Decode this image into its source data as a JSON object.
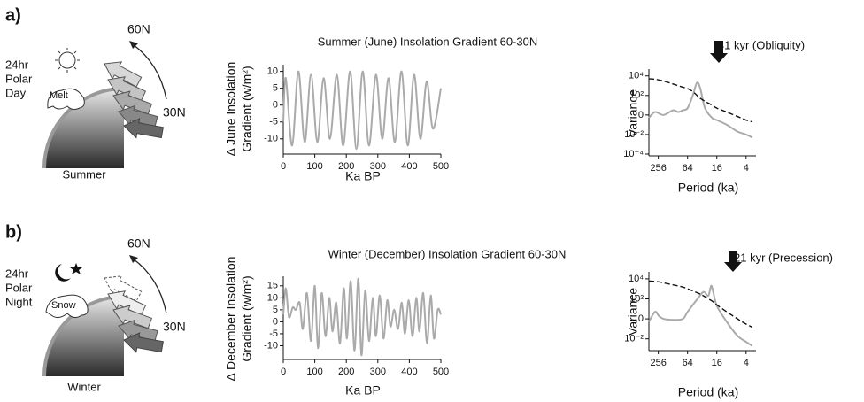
{
  "chart_data": [
    {
      "type": "line",
      "title": "Summer (June) Insolation Gradient 60-30N",
      "xlabel": "Ka BP",
      "ylabel": [
        "Δ June Insolation",
        "Gradient  (w/m²)"
      ],
      "xlim": [
        0,
        500
      ],
      "xticks": [
        0,
        100,
        200,
        300,
        400,
        500
      ],
      "ylim": [
        -14,
        12
      ],
      "yticks": [
        10,
        5,
        0,
        -5,
        -10
      ],
      "x": [
        0,
        8,
        28,
        48,
        68,
        88,
        108,
        128,
        148,
        170,
        190,
        212,
        232,
        252,
        272,
        294,
        314,
        334,
        354,
        375,
        395,
        415,
        435,
        455,
        475,
        500
      ],
      "series": [
        {
          "color": "#aaaaaa",
          "values": [
            -5,
            8,
            -12,
            10,
            -11,
            9,
            -11,
            8,
            -10,
            9,
            -12,
            10,
            -13,
            10,
            -12,
            9,
            -10,
            8,
            -11,
            10,
            -12,
            9,
            -10,
            7,
            -7,
            5
          ]
        }
      ]
    },
    {
      "type": "spectrum",
      "xlabel": "Period (ka)",
      "ylabel": [
        "Variance"
      ],
      "annotation": "41 kyr (Obliquity)",
      "xlog": true,
      "ylog": true,
      "xlim": [
        400,
        2.5
      ],
      "xticks": [
        256,
        64,
        16,
        4
      ],
      "ylim": [
        0.0001,
        50000
      ],
      "yticks": [
        {
          "value": 10000,
          "label": "10⁴"
        },
        {
          "value": 100,
          "label": "10²"
        },
        {
          "value": 1,
          "label": "0"
        },
        {
          "value": 0.01,
          "label": "10⁻²"
        },
        {
          "value": 0.0001,
          "label": "10⁻⁴"
        }
      ],
      "x": [
        400,
        300,
        200,
        128,
        100,
        80,
        64,
        50,
        41,
        35,
        28,
        20,
        16,
        10,
        6,
        4,
        3
      ],
      "series": [
        {
          "color": "#aaaaaa",
          "values": [
            0.5,
            2,
            1,
            3,
            2,
            3,
            5,
            100,
            2000,
            500,
            5,
            0.5,
            0.3,
            0.1,
            0.02,
            0.01,
            0.005
          ]
        },
        {
          "color": "#111111",
          "dash": true,
          "values": [
            5000,
            4500,
            3000,
            1500,
            1000,
            700,
            500,
            250,
            100,
            50,
            25,
            10,
            5,
            2,
            0.7,
            0.3,
            0.2
          ]
        }
      ]
    },
    {
      "type": "line",
      "title": "Winter (December) Insolation Gradient 60-30N",
      "xlabel": "Ka BP",
      "ylabel": [
        "Δ December Insolation",
        "Gradient  (w/m²)"
      ],
      "xlim": [
        0,
        500
      ],
      "xticks": [
        0,
        100,
        200,
        300,
        400,
        500
      ],
      "ylim": [
        -15,
        19
      ],
      "yticks": [
        15,
        10,
        5,
        0,
        -5,
        -10
      ],
      "x": [
        0,
        8,
        18,
        30,
        40,
        52,
        62,
        75,
        88,
        100,
        110,
        122,
        134,
        146,
        156,
        168,
        180,
        192,
        202,
        214,
        226,
        238,
        248,
        260,
        272,
        284,
        294,
        306,
        318,
        330,
        340,
        352,
        364,
        376,
        386,
        398,
        410,
        422,
        432,
        444,
        456,
        468,
        478,
        490,
        500
      ],
      "series": [
        {
          "color": "#aaaaaa",
          "values": [
            3,
            14,
            2,
            6,
            5,
            8,
            -3,
            12,
            -8,
            15,
            -11,
            12,
            -6,
            10,
            -4,
            8,
            -9,
            14,
            -7,
            17,
            -12,
            18,
            -14,
            13,
            -8,
            10,
            -6,
            11,
            -7,
            9,
            -2,
            5,
            -3,
            8,
            -5,
            9,
            -6,
            10,
            -4,
            12,
            -9,
            11,
            -7,
            5,
            3
          ]
        }
      ]
    },
    {
      "type": "spectrum",
      "xlabel": "Period (ka)",
      "ylabel": [
        "Variance"
      ],
      "annotation": "21 kyr (Precession)",
      "xlog": true,
      "ylog": true,
      "xlim": [
        400,
        2.5
      ],
      "xticks": [
        256,
        64,
        16,
        4
      ],
      "ylim": [
        0.001,
        50000
      ],
      "yticks": [
        {
          "value": 10000,
          "label": "10⁴"
        },
        {
          "value": 100,
          "label": "10²"
        },
        {
          "value": 1,
          "label": "0"
        },
        {
          "value": 0.01,
          "label": "10⁻²"
        }
      ],
      "x": [
        400,
        300,
        250,
        200,
        128,
        80,
        64,
        40,
        30,
        24,
        21,
        19,
        16,
        10,
        6,
        4,
        3
      ],
      "series": [
        {
          "color": "#aaaaaa",
          "values": [
            0.5,
            5,
            2,
            1,
            0.8,
            1,
            5,
            100,
            500,
            200,
            2000,
            500,
            20,
            0.5,
            0.02,
            0.005,
            0.002
          ]
        },
        {
          "color": "#111111",
          "dash": true,
          "values": [
            6000,
            5500,
            5000,
            4000,
            2500,
            1500,
            1000,
            400,
            200,
            100,
            70,
            50,
            25,
            5,
            1,
            0.3,
            0.15
          ]
        }
      ]
    }
  ],
  "diagrams": [
    {
      "label": "a)",
      "polar": [
        "24hr",
        "Polar",
        "Day"
      ],
      "cap": "Melt",
      "high": "60N",
      "low": "30N",
      "season": "Summer"
    },
    {
      "label": "b)",
      "polar": [
        "24hr",
        "Polar",
        "Night"
      ],
      "cap": "Snow",
      "high": "60N",
      "low": "30N",
      "season": "Winter"
    }
  ]
}
